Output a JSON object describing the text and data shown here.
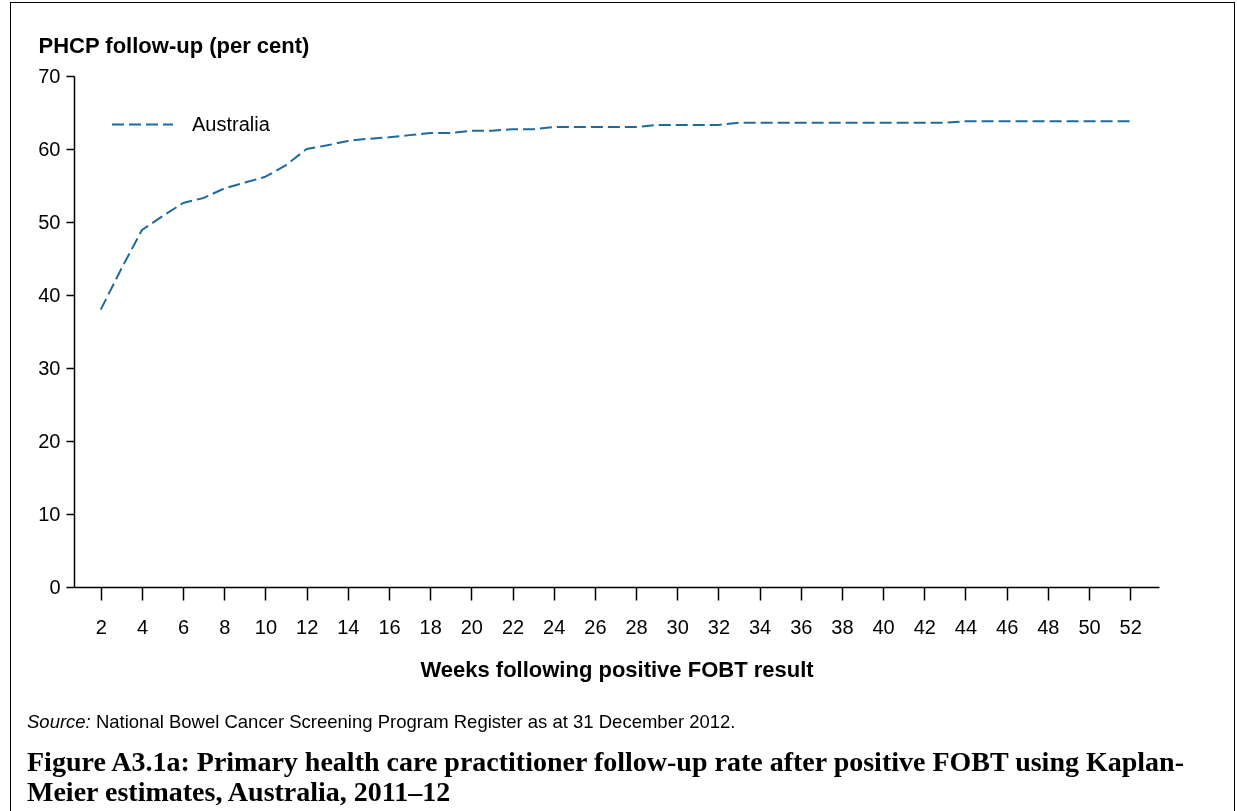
{
  "chart_data": {
    "type": "line",
    "title": "Figure A3.1a: Primary health care practitioner follow-up rate after positive FOBT using Kaplan-Meier estimates, Australia, 2011–12",
    "xlabel": "Weeks following positive FOBT result",
    "ylabel": "PHCP follow-up (per cent)",
    "annotations": [
      "Source: National Bowel Cancer Screening Program Register as at 31 December 2012."
    ],
    "x": [
      2,
      3,
      4,
      5,
      6,
      7,
      8,
      9,
      10,
      11,
      12,
      13,
      14,
      15,
      16,
      17,
      18,
      19,
      20,
      21,
      22,
      23,
      24,
      25,
      26,
      27,
      28,
      29,
      30,
      31,
      32,
      33,
      34,
      35,
      36,
      37,
      38,
      39,
      40,
      41,
      42,
      43,
      44,
      45,
      46,
      47,
      48,
      49,
      50,
      51,
      52
    ],
    "series": [
      {
        "name": "Australia",
        "color": "#1f6a9c",
        "values": [
          38.0,
          43.6,
          48.9,
          50.8,
          52.6,
          53.3,
          54.6,
          55.4,
          56.2,
          57.8,
          60.0,
          60.5,
          61.1,
          61.4,
          61.6,
          61.9,
          62.2,
          62.2,
          62.5,
          62.5,
          62.7,
          62.7,
          63.0,
          63.0,
          63.0,
          63.0,
          63.0,
          63.3,
          63.3,
          63.3,
          63.3,
          63.6,
          63.6,
          63.6,
          63.6,
          63.6,
          63.6,
          63.6,
          63.6,
          63.6,
          63.6,
          63.6,
          63.8,
          63.8,
          63.8,
          63.8,
          63.8,
          63.8,
          63.8,
          63.8,
          63.8
        ]
      }
    ],
    "xlim": [
      0.7,
      53.4
    ],
    "xticks": [
      2,
      4,
      6,
      8,
      10,
      12,
      14,
      16,
      18,
      20,
      22,
      24,
      26,
      28,
      30,
      32,
      34,
      36,
      38,
      40,
      42,
      44,
      46,
      48,
      50,
      52
    ],
    "ylim": [
      0,
      70
    ],
    "yticks": [
      0,
      10,
      20,
      30,
      40,
      50,
      60,
      70
    ],
    "legend": "top left",
    "line_style": "dashed"
  }
}
